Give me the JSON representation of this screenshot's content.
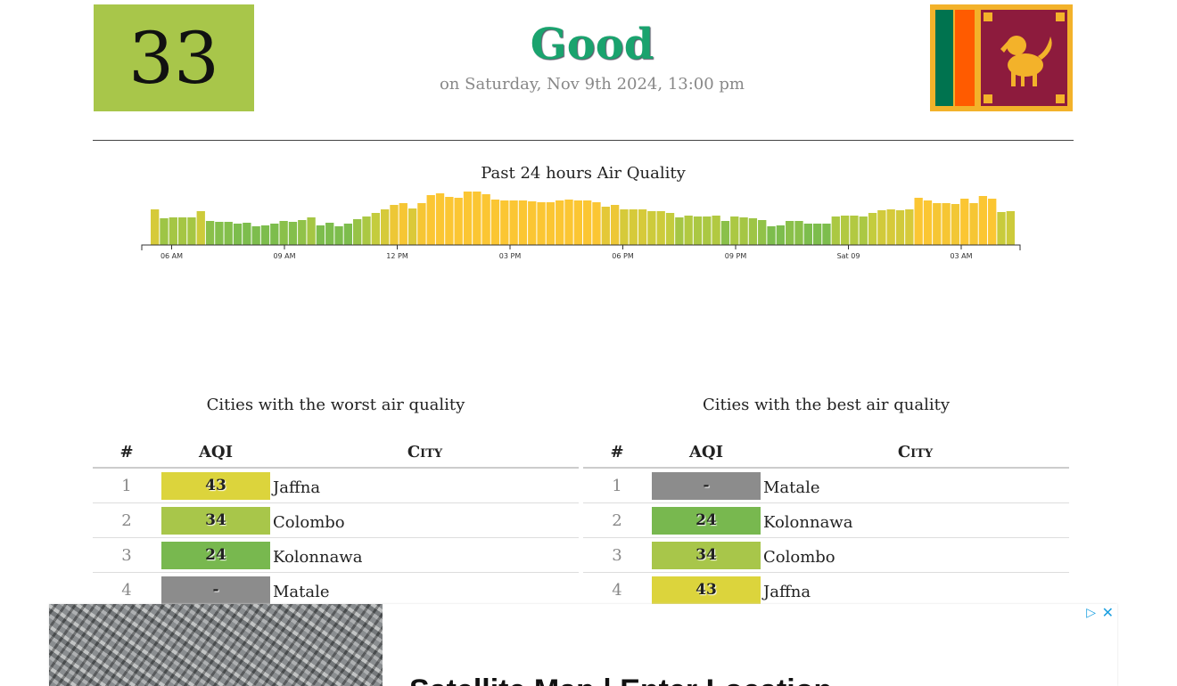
{
  "current": {
    "aqi": "33",
    "status": "Good",
    "updated": "on Saturday, Nov 9th 2024, 13:00 pm",
    "aqi_color": "#a8c64a",
    "status_color": "#1aa36e"
  },
  "flag": {
    "icon": "sri-lanka-flag-icon"
  },
  "chart_title": "Past 24 hours Air Quality",
  "chart_data": {
    "type": "bar",
    "title": "Past 24 hours Air Quality",
    "tick_labels": [
      "06 AM",
      "09 AM",
      "12 PM",
      "03 PM",
      "06 PM",
      "09 PM",
      "Sat 09",
      "03 AM"
    ],
    "values": [
      40,
      30,
      31,
      31,
      31,
      38,
      27,
      26,
      26,
      24,
      25,
      21,
      22,
      24,
      27,
      26,
      28,
      31,
      22,
      25,
      21,
      24,
      29,
      32,
      36,
      40,
      45,
      47,
      41,
      47,
      56,
      58,
      54,
      53,
      60,
      60,
      57,
      51,
      50,
      50,
      50,
      49,
      48,
      48,
      50,
      51,
      50,
      50,
      48,
      43,
      45,
      40,
      40,
      40,
      38,
      38,
      36,
      31,
      33,
      32,
      32,
      33,
      27,
      32,
      31,
      30,
      28,
      21,
      22,
      27,
      27,
      24,
      24,
      24,
      32,
      33,
      33,
      32,
      36,
      39,
      40,
      39,
      40,
      53,
      50,
      47,
      47,
      46,
      52,
      47,
      55,
      52,
      37,
      38
    ],
    "ylim": [
      0,
      70
    ],
    "colors": {
      "low": "#7dbd4d",
      "mid": "#bfcc3e",
      "high": "#fbc633"
    }
  },
  "worst": {
    "title": "Cities with the worst air quality",
    "headers": {
      "rank": "#",
      "aqi": "AQI",
      "city": "City"
    },
    "rows": [
      {
        "rank": "1",
        "aqi": "43",
        "city": "Jaffna",
        "color": "#dcd43c"
      },
      {
        "rank": "2",
        "aqi": "34",
        "city": "Colombo",
        "color": "#a8c64a"
      },
      {
        "rank": "3",
        "aqi": "24",
        "city": "Kolonnawa",
        "color": "#78b84f"
      },
      {
        "rank": "4",
        "aqi": "-",
        "city": "Matale",
        "color": "#8c8c8c"
      }
    ]
  },
  "best": {
    "title": "Cities with the best air quality",
    "headers": {
      "rank": "#",
      "aqi": "AQI",
      "city": "City"
    },
    "rows": [
      {
        "rank": "1",
        "aqi": "-",
        "city": "Matale",
        "color": "#8c8c8c"
      },
      {
        "rank": "2",
        "aqi": "24",
        "city": "Kolonnawa",
        "color": "#78b84f"
      },
      {
        "rank": "3",
        "aqi": "34",
        "city": "Colombo",
        "color": "#a8c64a"
      },
      {
        "rank": "4",
        "aqi": "43",
        "city": "Jaffna",
        "color": "#dcd43c"
      }
    ]
  },
  "ad": {
    "headline": "Satellite Map | Enter Location",
    "choices_icon": "adchoices-icon",
    "close_icon": "close-icon"
  }
}
